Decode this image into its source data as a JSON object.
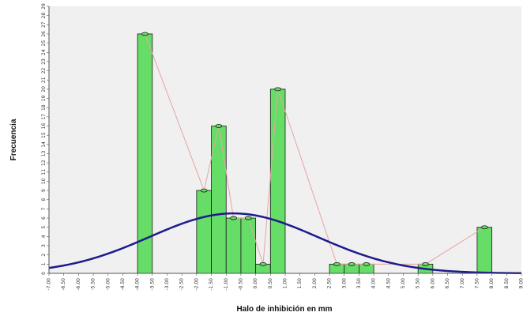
{
  "chart_data": {
    "type": "bar",
    "xlabel": "Halo de inhibición en mm",
    "ylabel": "Frecuencia",
    "grid": false,
    "ylim": [
      0,
      29
    ],
    "y_ticks": [
      0,
      1,
      2,
      3,
      4,
      5,
      6,
      7,
      8,
      9,
      10,
      11,
      12,
      13,
      14,
      15,
      16,
      17,
      18,
      19,
      20,
      21,
      22,
      23,
      24,
      25,
      26,
      27,
      28,
      29
    ],
    "xlim": [
      -7.0,
      9.0
    ],
    "x_ticks": [
      -7.0,
      -6.5,
      -6.0,
      -5.5,
      -5.0,
      -4.5,
      -4.0,
      -3.5,
      -3.0,
      -2.5,
      -2.0,
      -1.5,
      -1.0,
      -0.5,
      0.0,
      0.5,
      1.0,
      1.5,
      2.0,
      2.5,
      3.0,
      3.5,
      4.0,
      4.5,
      5.0,
      5.5,
      6.0,
      6.5,
      7.0,
      7.5,
      8.0,
      8.5,
      9.0
    ],
    "x_tick_labels": [
      "-7.00",
      "-6.50",
      "-6.00",
      "-5.50",
      "-5.00",
      "-4.50",
      "-4.00",
      "-3.50",
      "-3.00",
      "-2.50",
      "-2.00",
      "-1.50",
      "-1.00",
      "-0.50",
      "0.00",
      "0.50",
      "1.00",
      "1.50",
      "2.00",
      "2.50",
      "3.00",
      "3.50",
      "4.00",
      "4.50",
      "5.00",
      "5.50",
      "6.00",
      "6.50",
      "7.00",
      "7.50",
      "8.00",
      "8.50",
      "9.00"
    ],
    "bars": [
      {
        "x": -4.0,
        "value": 26
      },
      {
        "x": -2.0,
        "value": 9
      },
      {
        "x": -1.5,
        "value": 16
      },
      {
        "x": -1.0,
        "value": 6
      },
      {
        "x": -0.5,
        "value": 6
      },
      {
        "x": 0.0,
        "value": 1
      },
      {
        "x": 0.5,
        "value": 20
      },
      {
        "x": 2.5,
        "value": 1
      },
      {
        "x": 3.0,
        "value": 1
      },
      {
        "x": 3.5,
        "value": 1
      },
      {
        "x": 5.5,
        "value": 1
      },
      {
        "x": 7.5,
        "value": 5
      }
    ],
    "bar_width": 0.5,
    "normal_curve": {
      "mean": -0.75,
      "sd": 2.85,
      "n": 93,
      "bin_width": 0.5
    },
    "colors": {
      "bar_fill": "#66dd66",
      "bar_stroke": "#1a1a1a",
      "curve": "#1c1c8c",
      "polygon": "#e8a4a4",
      "plot_bg": "#f0f0f0",
      "axis": "#555555"
    }
  }
}
